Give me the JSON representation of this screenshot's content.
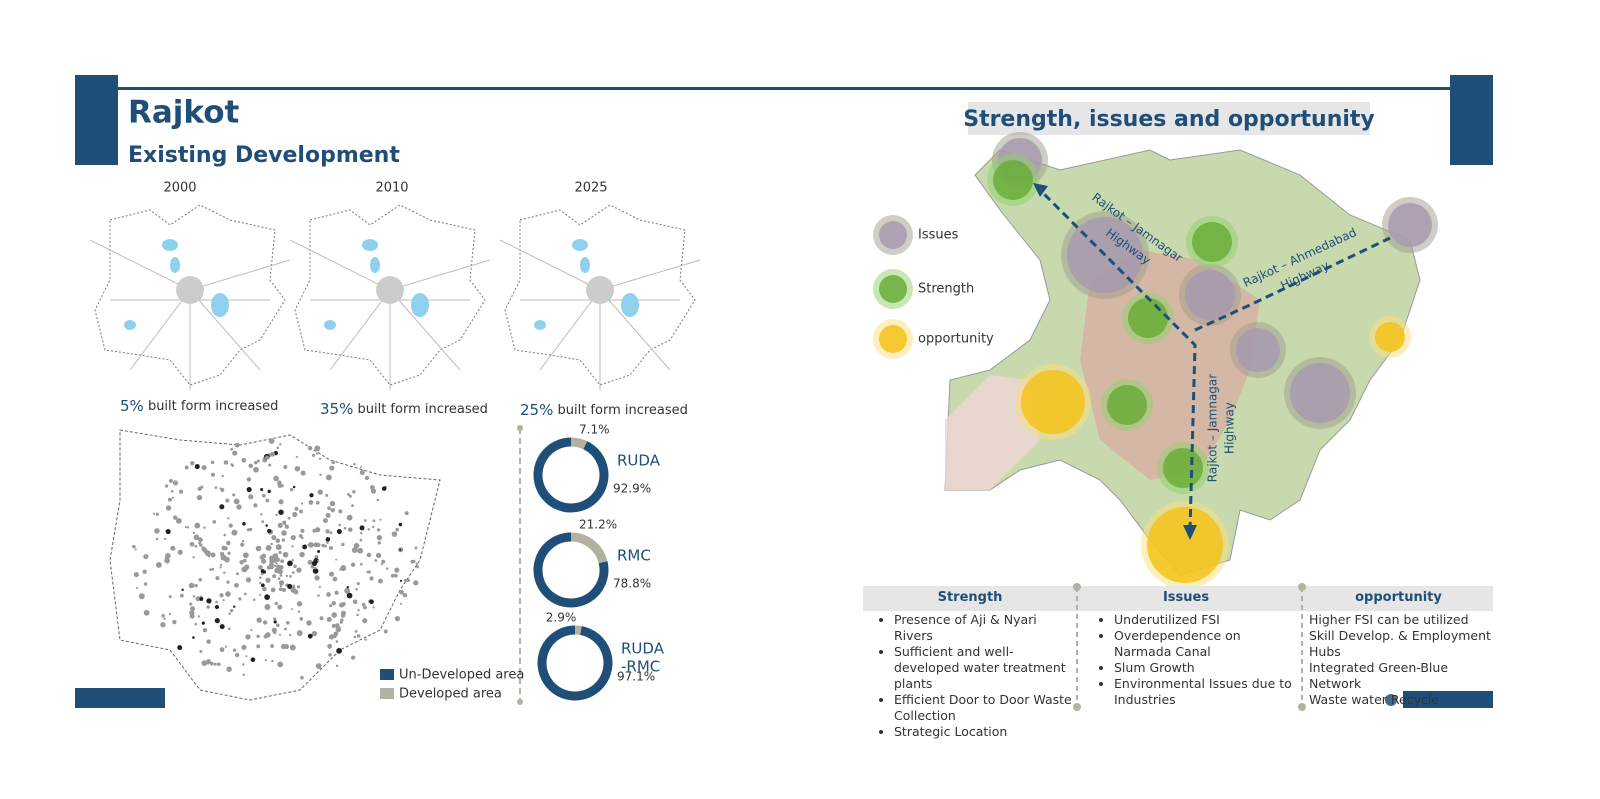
{
  "header": {
    "title": "Rajkot",
    "subtitle": "Existing Development"
  },
  "years": [
    "2000",
    "2010",
    "2025"
  ],
  "growth": [
    {
      "pct": "5%",
      "text": "built form increased"
    },
    {
      "pct": "35%",
      "text": "built form increased"
    },
    {
      "pct": "25%",
      "text": "built form increased"
    }
  ],
  "legend": [
    {
      "name": "Un-Developed area",
      "color": "#1f4e79"
    },
    {
      "name": "Developed area",
      "color": "#b3b1a2"
    }
  ],
  "chart_data": [
    {
      "type": "donut",
      "title_lines": [
        "RUDA"
      ],
      "values": [
        92.9,
        7.1
      ],
      "value_labels": [
        "92.9%",
        "7.1%"
      ]
    },
    {
      "type": "donut",
      "title_lines": [
        "RMC"
      ],
      "values": [
        78.8,
        21.2
      ],
      "value_labels": [
        "78.8%",
        "21.2%"
      ]
    },
    {
      "type": "donut",
      "title_lines": [
        "RUDA",
        "-RMC"
      ],
      "values": [
        97.1,
        2.9
      ],
      "value_labels": [
        "97.1%",
        "2.9%"
      ]
    }
  ],
  "sio": {
    "title": "Strength, issues and opportunity",
    "map_legend": [
      "Issues",
      "Strength",
      "opportunity"
    ],
    "roads": [
      "Rajkot – Jamnagar",
      "Highway",
      "Rajkot – Ahmedabad",
      "Highway",
      "Rajkot – Jamnagar",
      "Highway"
    ],
    "columns": [
      {
        "heading": "Strength",
        "items": [
          "Presence of Aji & Nyari Rivers",
          "Sufficient and well-developed water treatment plants",
          "Efficient Door to Door Waste Collection",
          "Strategic Location"
        ]
      },
      {
        "heading": "Issues",
        "items": [
          "Underutilized FSI",
          "Overdependence on Narmada Canal",
          "Slum Growth",
          "Environmental Issues due to Industries"
        ]
      },
      {
        "heading": "opportunity",
        "items": [
          "Higher FSI can be utilized",
          "Skill Develop. & Employment Hubs",
          "Integrated Green-Blue Network",
          "Waste water Recycle"
        ]
      }
    ]
  }
}
